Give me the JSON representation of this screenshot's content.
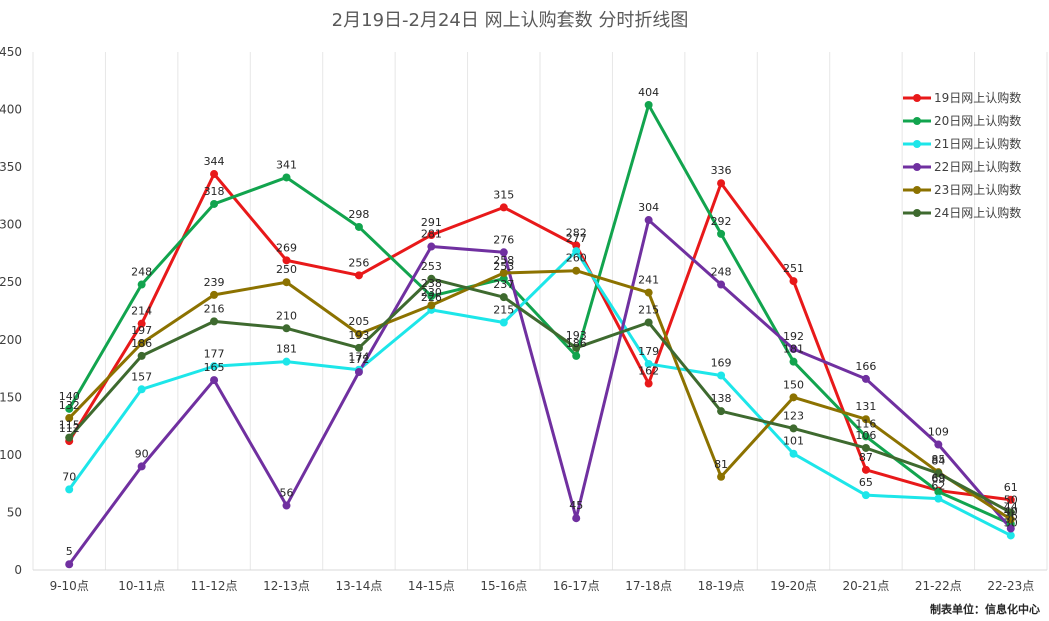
{
  "chart_data": {
    "type": "line",
    "title": "2月19日-2月24日 网上认购套数 分时折线图",
    "footer": "制表单位：信息化中心",
    "ylim": [
      0,
      450
    ],
    "yticks": [
      0,
      50,
      100,
      150,
      200,
      250,
      300,
      350,
      400,
      450
    ],
    "grid": "vertical",
    "legend_position": "right",
    "categories": [
      "9-10点",
      "10-11点",
      "11-12点",
      "12-13点",
      "13-14点",
      "14-15点",
      "15-16点",
      "16-17点",
      "17-18点",
      "18-19点",
      "19-20点",
      "20-21点",
      "21-22点",
      "22-23点"
    ],
    "series": [
      {
        "name": "19日网上认购数",
        "color": "#e8191a",
        "values": [
          112,
          214,
          344,
          269,
          256,
          291,
          315,
          282,
          162,
          336,
          251,
          87,
          69,
          61
        ]
      },
      {
        "name": "20日网上认购数",
        "color": "#12a44e",
        "values": [
          140,
          248,
          318,
          341,
          298,
          238,
          253,
          186,
          404,
          292,
          181,
          116,
          68,
          40
        ]
      },
      {
        "name": "21日网上认购数",
        "color": "#1de6e9",
        "values": [
          70,
          157,
          177,
          181,
          174,
          226,
          215,
          277,
          179,
          169,
          101,
          65,
          62,
          30
        ]
      },
      {
        "name": "22日网上认购数",
        "color": "#7030a0",
        "values": [
          5,
          90,
          165,
          56,
          172,
          281,
          276,
          45,
          304,
          248,
          192,
          166,
          109,
          36
        ]
      },
      {
        "name": "23日网上认购数",
        "color": "#8c7200",
        "values": [
          132,
          197,
          239,
          250,
          205,
          230,
          258,
          260,
          241,
          81,
          150,
          131,
          85,
          44
        ]
      },
      {
        "name": "24日网上认购数",
        "color": "#3e6a2f",
        "values": [
          115,
          186,
          216,
          210,
          193,
          253,
          237,
          193,
          215,
          138,
          123,
          106,
          84,
          50
        ]
      }
    ]
  }
}
